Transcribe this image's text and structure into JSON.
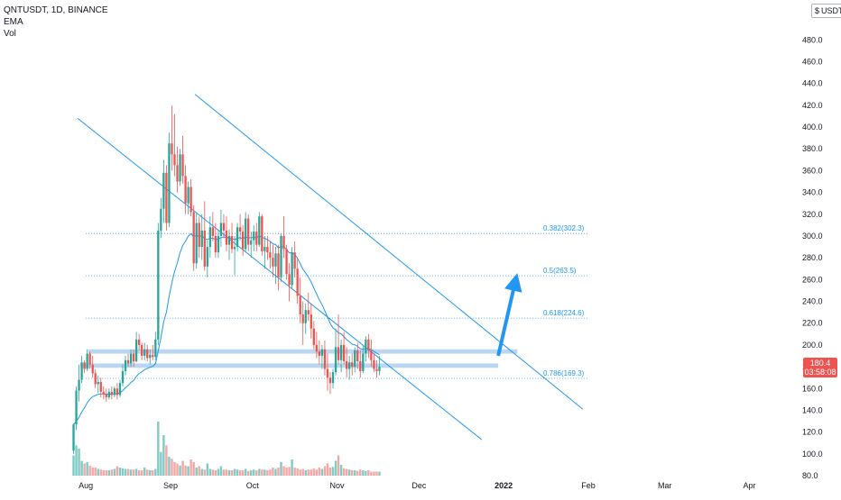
{
  "legend": {
    "symbol": "QNTUSDT, 1D, BINANCE",
    "ema": "EMA",
    "vol": "Vol"
  },
  "currency": {
    "icon": "dollar-sign-icon",
    "label": "USDT"
  },
  "price_badge": {
    "price": "180.4",
    "countdown": "03:58:08"
  },
  "colors": {
    "up": "#26a69a",
    "down": "#ef5350",
    "up_vol": "#80cbc4",
    "down_vol": "#f4a8a6",
    "ema": "#2196f3",
    "trendline": "#2196f3",
    "fib": "#2196f3",
    "zone": "#bbd6f1",
    "arrow": "#2196f3",
    "axis_text": "#131722"
  },
  "chart_data": {
    "type": "candlestick",
    "symbol": "QNTUSDT",
    "interval": "1D",
    "exchange": "BINANCE",
    "y_axis": {
      "scale": "linear",
      "ylim": [
        80,
        510
      ],
      "ticks": [
        80.0,
        100.0,
        120.0,
        140.0,
        160.0,
        180.0,
        200.0,
        220.0,
        240.0,
        260.0,
        280.0,
        300.0,
        320.0,
        340.0,
        360.0,
        380.0,
        400.0,
        420.0,
        440.0,
        460.0,
        480.0
      ],
      "tick_labels": [
        "80.0",
        "100.0",
        "120.0",
        "140.0",
        "160.0",
        "180.0",
        "200.0",
        "220.0",
        "240.0",
        "260.0",
        "280.0",
        "300.0",
        "320.0",
        "340.0",
        "360.0",
        "380.0",
        "400.0",
        "420.0",
        "440.0",
        "460.0",
        "480.0"
      ]
    },
    "x_axis": {
      "range": [
        "2021-07-27",
        "2022-04-19"
      ],
      "ticks": [
        {
          "date": "2021-08-01",
          "label": "Aug",
          "bold": false
        },
        {
          "date": "2021-09-01",
          "label": "Sep",
          "bold": false
        },
        {
          "date": "2021-10-01",
          "label": "Oct",
          "bold": false
        },
        {
          "date": "2021-11-01",
          "label": "Nov",
          "bold": false
        },
        {
          "date": "2021-12-01",
          "label": "Dec",
          "bold": false
        },
        {
          "date": "2022-01-01",
          "label": "2022",
          "bold": true
        },
        {
          "date": "2022-02-01",
          "label": "Feb",
          "bold": false
        },
        {
          "date": "2022-03-01",
          "label": "Mar",
          "bold": false
        },
        {
          "date": "2022-04-01",
          "label": "Apr",
          "bold": false
        }
      ]
    },
    "first_date": "2021-07-27",
    "candles": [
      [
        103,
        128,
        100,
        127
      ],
      [
        127,
        162,
        122,
        158
      ],
      [
        158,
        182,
        148,
        168
      ],
      [
        168,
        190,
        165,
        184
      ],
      [
        184,
        186,
        174,
        178
      ],
      [
        178,
        196,
        176,
        192
      ],
      [
        192,
        194,
        178,
        182
      ],
      [
        182,
        190,
        170,
        174
      ],
      [
        174,
        178,
        160,
        164
      ],
      [
        164,
        172,
        156,
        166
      ],
      [
        166,
        170,
        152,
        157
      ],
      [
        157,
        162,
        150,
        155
      ],
      [
        155,
        160,
        148,
        152
      ],
      [
        152,
        160,
        150,
        157
      ],
      [
        157,
        162,
        150,
        154
      ],
      [
        154,
        162,
        152,
        160
      ],
      [
        160,
        165,
        150,
        154
      ],
      [
        154,
        168,
        152,
        165
      ],
      [
        165,
        182,
        162,
        176
      ],
      [
        176,
        190,
        172,
        186
      ],
      [
        186,
        192,
        180,
        183
      ],
      [
        183,
        196,
        180,
        192
      ],
      [
        192,
        196,
        180,
        185
      ],
      [
        185,
        212,
        184,
        205
      ],
      [
        205,
        210,
        195,
        200
      ],
      [
        200,
        202,
        186,
        190
      ],
      [
        190,
        202,
        186,
        196
      ],
      [
        196,
        200,
        185,
        188
      ],
      [
        188,
        196,
        182,
        191
      ],
      [
        191,
        200,
        186,
        189
      ],
      [
        189,
        212,
        186,
        205
      ],
      [
        205,
        312,
        200,
        305
      ],
      [
        305,
        335,
        298,
        325
      ],
      [
        325,
        370,
        312,
        358
      ],
      [
        358,
        365,
        305,
        312
      ],
      [
        312,
        395,
        308,
        385
      ],
      [
        385,
        420,
        360,
        375
      ],
      [
        375,
        412,
        355,
        365
      ],
      [
        365,
        382,
        340,
        350
      ],
      [
        350,
        380,
        346,
        375
      ],
      [
        375,
        392,
        348,
        355
      ],
      [
        355,
        365,
        320,
        330
      ],
      [
        330,
        350,
        320,
        345
      ],
      [
        345,
        352,
        318,
        322
      ],
      [
        322,
        328,
        268,
        275
      ],
      [
        275,
        322,
        270,
        312
      ],
      [
        312,
        318,
        280,
        290
      ],
      [
        290,
        320,
        278,
        305
      ],
      [
        305,
        332,
        268,
        272
      ],
      [
        272,
        296,
        262,
        290
      ],
      [
        290,
        318,
        280,
        308
      ],
      [
        308,
        322,
        295,
        300
      ],
      [
        300,
        312,
        280,
        285
      ],
      [
        285,
        306,
        280,
        300
      ],
      [
        300,
        324,
        290,
        312
      ],
      [
        312,
        320,
        298,
        305
      ],
      [
        305,
        318,
        286,
        292
      ],
      [
        292,
        306,
        278,
        300
      ],
      [
        300,
        312,
        284,
        288
      ],
      [
        288,
        300,
        264,
        290
      ],
      [
        290,
        312,
        286,
        308
      ],
      [
        308,
        320,
        296,
        304
      ],
      [
        304,
        310,
        282,
        288
      ],
      [
        288,
        322,
        286,
        316
      ],
      [
        316,
        320,
        286,
        292
      ],
      [
        292,
        304,
        280,
        296
      ],
      [
        296,
        310,
        286,
        304
      ],
      [
        304,
        312,
        286,
        292
      ],
      [
        292,
        322,
        290,
        318
      ],
      [
        318,
        320,
        282,
        286
      ],
      [
        286,
        300,
        270,
        290
      ],
      [
        290,
        300,
        278,
        285
      ],
      [
        285,
        295,
        270,
        280
      ],
      [
        280,
        292,
        262,
        272
      ],
      [
        272,
        290,
        256,
        284
      ],
      [
        284,
        292,
        250,
        262
      ],
      [
        262,
        302,
        258,
        300
      ],
      [
        300,
        318,
        280,
        288
      ],
      [
        288,
        292,
        260,
        265
      ],
      [
        265,
        275,
        240,
        255
      ],
      [
        255,
        290,
        252,
        285
      ],
      [
        285,
        295,
        262,
        270
      ],
      [
        270,
        280,
        238,
        245
      ],
      [
        245,
        262,
        220,
        228
      ],
      [
        228,
        240,
        200,
        220
      ],
      [
        220,
        238,
        210,
        232
      ],
      [
        232,
        248,
        222,
        228
      ],
      [
        228,
        238,
        206,
        215
      ],
      [
        215,
        222,
        196,
        200
      ],
      [
        200,
        212,
        188,
        194
      ],
      [
        194,
        204,
        182,
        190
      ],
      [
        190,
        200,
        178,
        196
      ],
      [
        196,
        204,
        172,
        178
      ],
      [
        178,
        192,
        158,
        170
      ],
      [
        170,
        175,
        155,
        165
      ],
      [
        165,
        178,
        160,
        175
      ],
      [
        175,
        215,
        172,
        198
      ],
      [
        198,
        228,
        182,
        186
      ],
      [
        186,
        205,
        175,
        200
      ],
      [
        200,
        212,
        182,
        185
      ],
      [
        185,
        198,
        170,
        178
      ],
      [
        178,
        190,
        168,
        184
      ],
      [
        184,
        192,
        172,
        180
      ],
      [
        180,
        198,
        175,
        195
      ],
      [
        195,
        202,
        178,
        185
      ],
      [
        185,
        195,
        170,
        176
      ],
      [
        176,
        200,
        174,
        192
      ],
      [
        192,
        208,
        185,
        205
      ],
      [
        205,
        210,
        188,
        195
      ],
      [
        195,
        205,
        180,
        186
      ],
      [
        186,
        192,
        175,
        178
      ],
      [
        178,
        186,
        170,
        176
      ],
      [
        176,
        190,
        172,
        180
      ]
    ],
    "volume": [
      30,
      45,
      40,
      22,
      18,
      20,
      15,
      12,
      12,
      10,
      9,
      8,
      8,
      8,
      9,
      10,
      14,
      12,
      11,
      10,
      10,
      9,
      9,
      10,
      8,
      8,
      12,
      9,
      8,
      8,
      10,
      80,
      35,
      60,
      45,
      28,
      25,
      20,
      18,
      15,
      22,
      15,
      14,
      24,
      20,
      12,
      14,
      10,
      9,
      18,
      10,
      9,
      8,
      10,
      14,
      9,
      9,
      8,
      8,
      10,
      9,
      8,
      8,
      10,
      7,
      8,
      9,
      8,
      10,
      9,
      9,
      8,
      9,
      12,
      10,
      12,
      20,
      14,
      12,
      13,
      24,
      12,
      11,
      9,
      10,
      8,
      9,
      9,
      11,
      9,
      12,
      10,
      14,
      18,
      12,
      13,
      22,
      30,
      16,
      11,
      10,
      9,
      8,
      8,
      7,
      9,
      8,
      7,
      8,
      6,
      6,
      6,
      6
    ],
    "volume_panel_max": 100,
    "ema": {
      "name": "EMA",
      "values": []
    },
    "annotations": {
      "fibonacci": [
        {
          "ratio": 0.382,
          "price": 302.3,
          "label": "0.382(302.3)"
        },
        {
          "ratio": 0.5,
          "price": 263.5,
          "label": "0.5(263.5)"
        },
        {
          "ratio": 0.618,
          "price": 224.6,
          "label": "0.618(224.6)"
        },
        {
          "ratio": 0.786,
          "price": 169.3,
          "label": "0.786(169.3)"
        }
      ],
      "fib_x_range": [
        "2021-08-01",
        "2022-02-01"
      ],
      "zones": [
        {
          "price_low": 192,
          "price_high": 196,
          "x_start": "2021-08-02",
          "x_end": "2022-01-06"
        },
        {
          "price_low": 179,
          "price_high": 183,
          "x_start": "2021-07-30",
          "x_end": "2021-12-30"
        }
      ],
      "trendlines": [
        {
          "x1": "2021-09-10",
          "y1": 430,
          "x2": "2022-01-30",
          "y2": 141
        },
        {
          "x1": "2021-07-29",
          "y1": 408,
          "x2": "2021-12-24",
          "y2": 113
        }
      ],
      "arrow": {
        "x1": "2021-12-30",
        "y1": 190,
        "x2": "2022-01-06",
        "y2": 266
      }
    }
  }
}
